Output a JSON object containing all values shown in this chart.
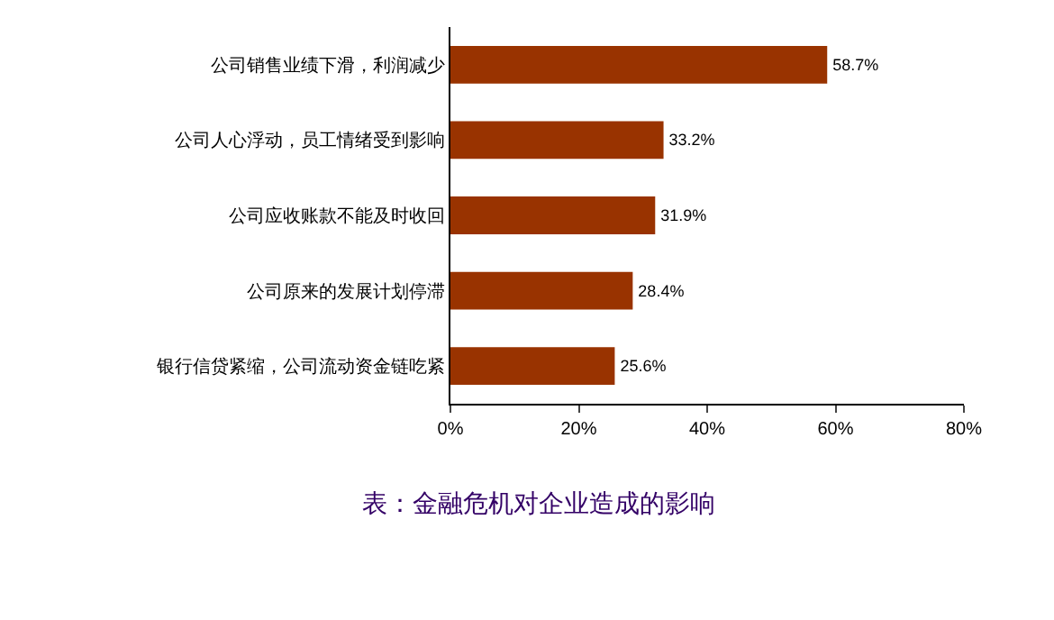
{
  "chart_data": {
    "type": "bar",
    "orientation": "horizontal",
    "categories": [
      "公司销售业绩下滑，利润减少",
      "公司人心浮动，员工情绪受到影响",
      "公司应收账款不能及时收回",
      "公司原来的发展计划停滞",
      "银行信贷紧缩，公司流动资金链吃紧"
    ],
    "values": [
      58.7,
      33.2,
      31.9,
      28.4,
      25.6
    ],
    "value_labels": [
      "58.7%",
      "33.2%",
      "31.9%",
      "28.4%",
      "25.6%"
    ],
    "color": "#993300",
    "xlim": [
      0,
      80
    ],
    "xticks": [
      {
        "value": 0,
        "label": "0%"
      },
      {
        "value": 20,
        "label": "20%"
      },
      {
        "value": 40,
        "label": "40%"
      },
      {
        "value": 60,
        "label": "60%"
      },
      {
        "value": 80,
        "label": "80%"
      }
    ],
    "grid": false,
    "legend": false,
    "annotations": [
      "表：金融危机对企业造成的影响"
    ]
  }
}
